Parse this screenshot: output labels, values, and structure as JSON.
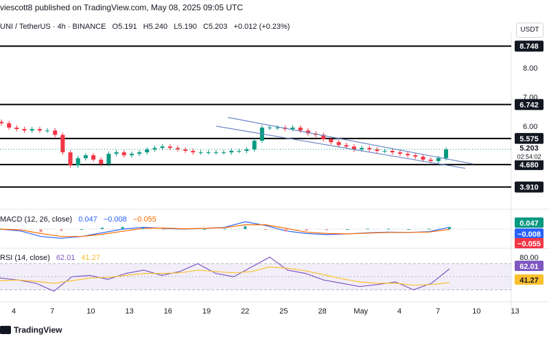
{
  "header": {
    "published": "viescott8 published on TradingView.com, May 08, 2025 09:05 UTC",
    "symbol": "UNI / TetherUS · 4h · BINANCE",
    "open": "O5.191",
    "high": "H5.240",
    "low": "L5.190",
    "close": "C5.203",
    "change": "+0.012 (+0.23%)",
    "currency": "USDT"
  },
  "colors": {
    "up": "#089981",
    "down": "#f23645",
    "macd": "#2962ff",
    "signal": "#ff6d00",
    "rsi": "#7e57c2",
    "rsi_ma": "#fbc02d",
    "channel": "#6a86c6"
  },
  "chart_data": [
    {
      "type": "candlestick",
      "title": "UNI / TetherUS · 4h · BINANCE",
      "x_ticks": [
        "4",
        "7",
        "10",
        "13",
        "16",
        "19",
        "22",
        "25",
        "28",
        "May",
        "4",
        "7",
        "10",
        "13"
      ],
      "y_ticks": [
        8.0,
        7.0,
        6.0,
        5.0
      ],
      "ylim": [
        3.5,
        9.2
      ],
      "close_path": [
        6.1,
        5.95,
        5.9,
        5.85,
        5.9,
        5.85,
        5.85,
        5.7,
        5.1,
        4.65,
        4.9,
        5.0,
        4.85,
        4.7,
        5.05,
        5.1,
        5.0,
        5.05,
        5.1,
        5.2,
        5.25,
        5.3,
        5.25,
        5.2,
        5.15,
        5.1,
        5.1,
        5.1,
        5.1,
        5.1,
        5.15,
        5.15,
        5.2,
        5.5,
        5.95,
        5.95,
        5.95,
        5.9,
        5.95,
        5.85,
        5.75,
        5.7,
        5.55,
        5.45,
        5.35,
        5.3,
        5.2,
        5.25,
        5.2,
        5.15,
        5.15,
        5.1,
        5.05,
        5.0,
        4.95,
        4.85,
        4.8,
        4.9,
        5.2
      ],
      "horizontal_levels": [
        {
          "label": "8.748",
          "value": 8.748
        },
        {
          "label": "6.742",
          "value": 6.742
        },
        {
          "label": "5.575",
          "value": 5.575
        },
        {
          "label": "4.680",
          "value": 4.68
        },
        {
          "label": "3.910",
          "value": 3.91
        }
      ],
      "last_price": "5.203",
      "countdown": "02:54:02",
      "channel": {
        "upper_start": 6.3,
        "upper_end": 4.7,
        "lower_start": 6.0,
        "lower_end": 4.55
      }
    },
    {
      "type": "line",
      "title": "MACD (12, 26, close)",
      "values_text": [
        "0.047",
        "−0.008",
        "−0.055"
      ],
      "series": [
        {
          "values": [
            0.0,
            -0.05,
            -0.2,
            -0.25,
            -0.2,
            -0.1,
            0.0,
            0.05,
            0.02,
            0.0,
            0.02,
            0.05,
            0.2,
            0.1,
            -0.05,
            -0.12,
            -0.15,
            -0.13,
            -0.1,
            -0.08,
            -0.09,
            -0.07,
            0.05
          ]
        },
        {
          "values": [
            0.0,
            -0.02,
            -0.12,
            -0.2,
            -0.2,
            -0.14,
            -0.06,
            0.02,
            0.03,
            0.01,
            0.02,
            0.04,
            0.12,
            0.12,
            0.02,
            -0.08,
            -0.12,
            -0.13,
            -0.11,
            -0.09,
            -0.09,
            -0.08,
            -0.01
          ]
        }
      ]
    },
    {
      "type": "line",
      "title": "RSI (14, close)",
      "values_text": [
        "62.01",
        "41.27"
      ],
      "y_ticks": [
        80.0
      ],
      "ylim": [
        20,
        85
      ],
      "series": [
        {
          "values": [
            48,
            45,
            40,
            28,
            50,
            52,
            46,
            55,
            60,
            52,
            58,
            70,
            55,
            50,
            65,
            80,
            60,
            55,
            45,
            40,
            35,
            38,
            42,
            30,
            40,
            62
          ]
        },
        {
          "values": [
            44,
            45,
            43,
            40,
            44,
            48,
            49,
            52,
            55,
            55,
            56,
            60,
            58,
            56,
            58,
            65,
            63,
            59,
            53,
            47,
            42,
            40,
            40,
            37,
            38,
            41
          ]
        }
      ]
    }
  ],
  "footer": {
    "brand": "TradingView"
  }
}
